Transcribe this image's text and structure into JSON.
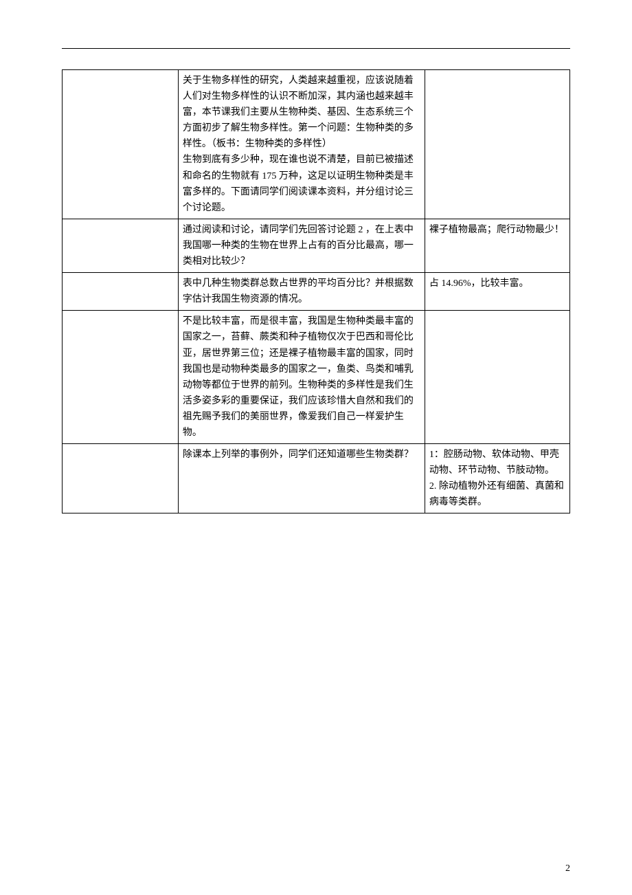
{
  "rows": [
    {
      "col1": "",
      "col2": "关于生物多样性的研究，人类越来越重视，应该说随着人们对生物多样性的认识不断加深，其内涵也越来越丰富，本节课我们主要从生物种类、基因、生态系统三个方面初步了解生物多样性。第一个问题：生物种类的多样性。（板书：生物种类的多样性）\n生物到底有多少种，现在谁也说不清楚，目前已被描述和命名的生物就有 175 万种，这足以证明生物种类是丰富多样的。下面请同学们阅读课本资料，并分组讨论三个讨论题。",
      "col3": ""
    },
    {
      "col1": "",
      "col2": "通过阅读和讨论，请同学们先回答讨论题 2 ，在上表中我国哪一种类的生物在世界上占有的百分比最高，哪一类相对比较少？",
      "col3": "裸子植物最高；爬行动物最少！"
    },
    {
      "col1": "",
      "col2": "表中几种生物类群总数占世界的平均百分比？并根据数字估计我国生物资源的情况。",
      "col3": "占 14.96%，比较丰富。"
    },
    {
      "col1": "",
      "col2": "不是比较丰富，而是很丰富，我国是生物种类最丰富的国家之一，苔藓、蕨类和种子植物仅次于巴西和哥伦比亚，居世界第三位；还是裸子植物最丰富的国家，同时我国也是动物种类最多的国家之一，鱼类、鸟类和哺乳动物等都位于世界的前列。生物种类的多样性是我们生活多姿多彩的重要保证，我们应该珍惜大自然和我们的祖先赐予我们的美丽世界，像爱我们自己一样爱护生物。",
      "col3": ""
    },
    {
      "col1": "",
      "col2": "除课本上列举的事例外，同学们还知道哪些生物类群？",
      "col3": "1：腔肠动物、软体动物、甲壳动物、环节动物、节肢动物。\n2. 除动植物外还有细菌、真菌和病毒等类群。"
    }
  ],
  "page_number": "2"
}
